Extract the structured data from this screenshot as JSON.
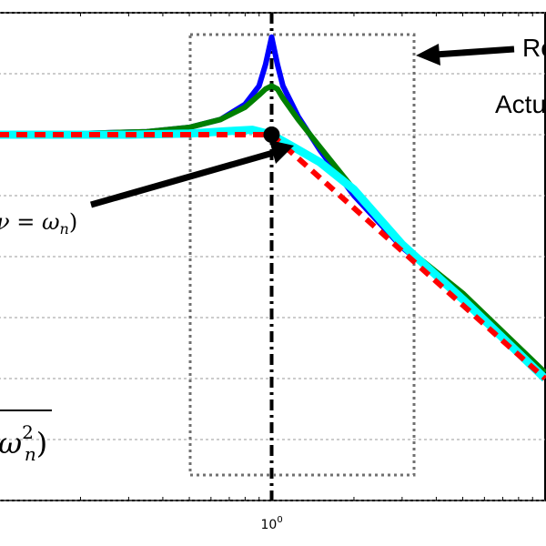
{
  "chart_data": {
    "type": "line",
    "xscale": "log",
    "xlim": [
      0.1,
      10
    ],
    "ylim": [
      -60,
      20
    ],
    "grid": true,
    "x_tick_labels": [
      {
        "x": 1,
        "base": "10",
        "exp": "0"
      }
    ],
    "series": [
      {
        "color": "#0000ff",
        "style": "solid",
        "x": [
          0.1,
          0.2,
          0.35,
          0.5,
          0.65,
          0.8,
          0.9,
          0.95,
          1.0,
          1.05,
          1.1,
          1.25,
          1.5,
          2,
          3,
          5,
          10
        ],
        "y": [
          0.1,
          0.2,
          0.5,
          1.2,
          2.5,
          5.0,
          8.0,
          11.5,
          16.0,
          11.5,
          8.0,
          3.0,
          -2.5,
          -10.0,
          -18.5,
          -26.5,
          -39.0
        ]
      },
      {
        "color": "#008000",
        "style": "solid",
        "x": [
          0.1,
          0.2,
          0.35,
          0.5,
          0.65,
          0.8,
          0.9,
          0.95,
          1.0,
          1.05,
          1.1,
          1.25,
          1.5,
          2,
          3,
          5,
          10
        ],
        "y": [
          0.0,
          0.2,
          0.5,
          1.2,
          2.5,
          4.5,
          6.5,
          7.5,
          8.0,
          7.5,
          6.0,
          2.5,
          -2.0,
          -9.0,
          -18.0,
          -26.0,
          -39.0
        ]
      },
      {
        "color": "#00ffff",
        "style": "solid",
        "x": [
          0.1,
          0.3,
          0.5,
          0.7,
          0.85,
          1.0,
          1.2,
          1.5,
          2,
          3,
          5,
          10
        ],
        "y": [
          0.0,
          0.0,
          0.2,
          0.6,
          0.8,
          0.0,
          -2.0,
          -4.5,
          -9.0,
          -18.0,
          -27.0,
          -40.0
        ]
      },
      {
        "color": "#ff0000",
        "style": "dashed",
        "x": [
          0.1,
          1.0,
          10
        ],
        "y": [
          0.0,
          0.0,
          -40.0
        ]
      }
    ],
    "marker_point": {
      "x": 1.0,
      "y": 0.0
    },
    "vertical_line": {
      "x": 1.0
    },
    "annotations": {
      "top_right_label": "Re",
      "right_label": "Actu",
      "left_math_label": "ν = ω",
      "left_math_sub": "n",
      "left_math_close": ")",
      "bottom_math_label": "ω",
      "bottom_math_sup": "2",
      "bottom_math_sub": "n",
      "bottom_math_close": ")"
    }
  }
}
